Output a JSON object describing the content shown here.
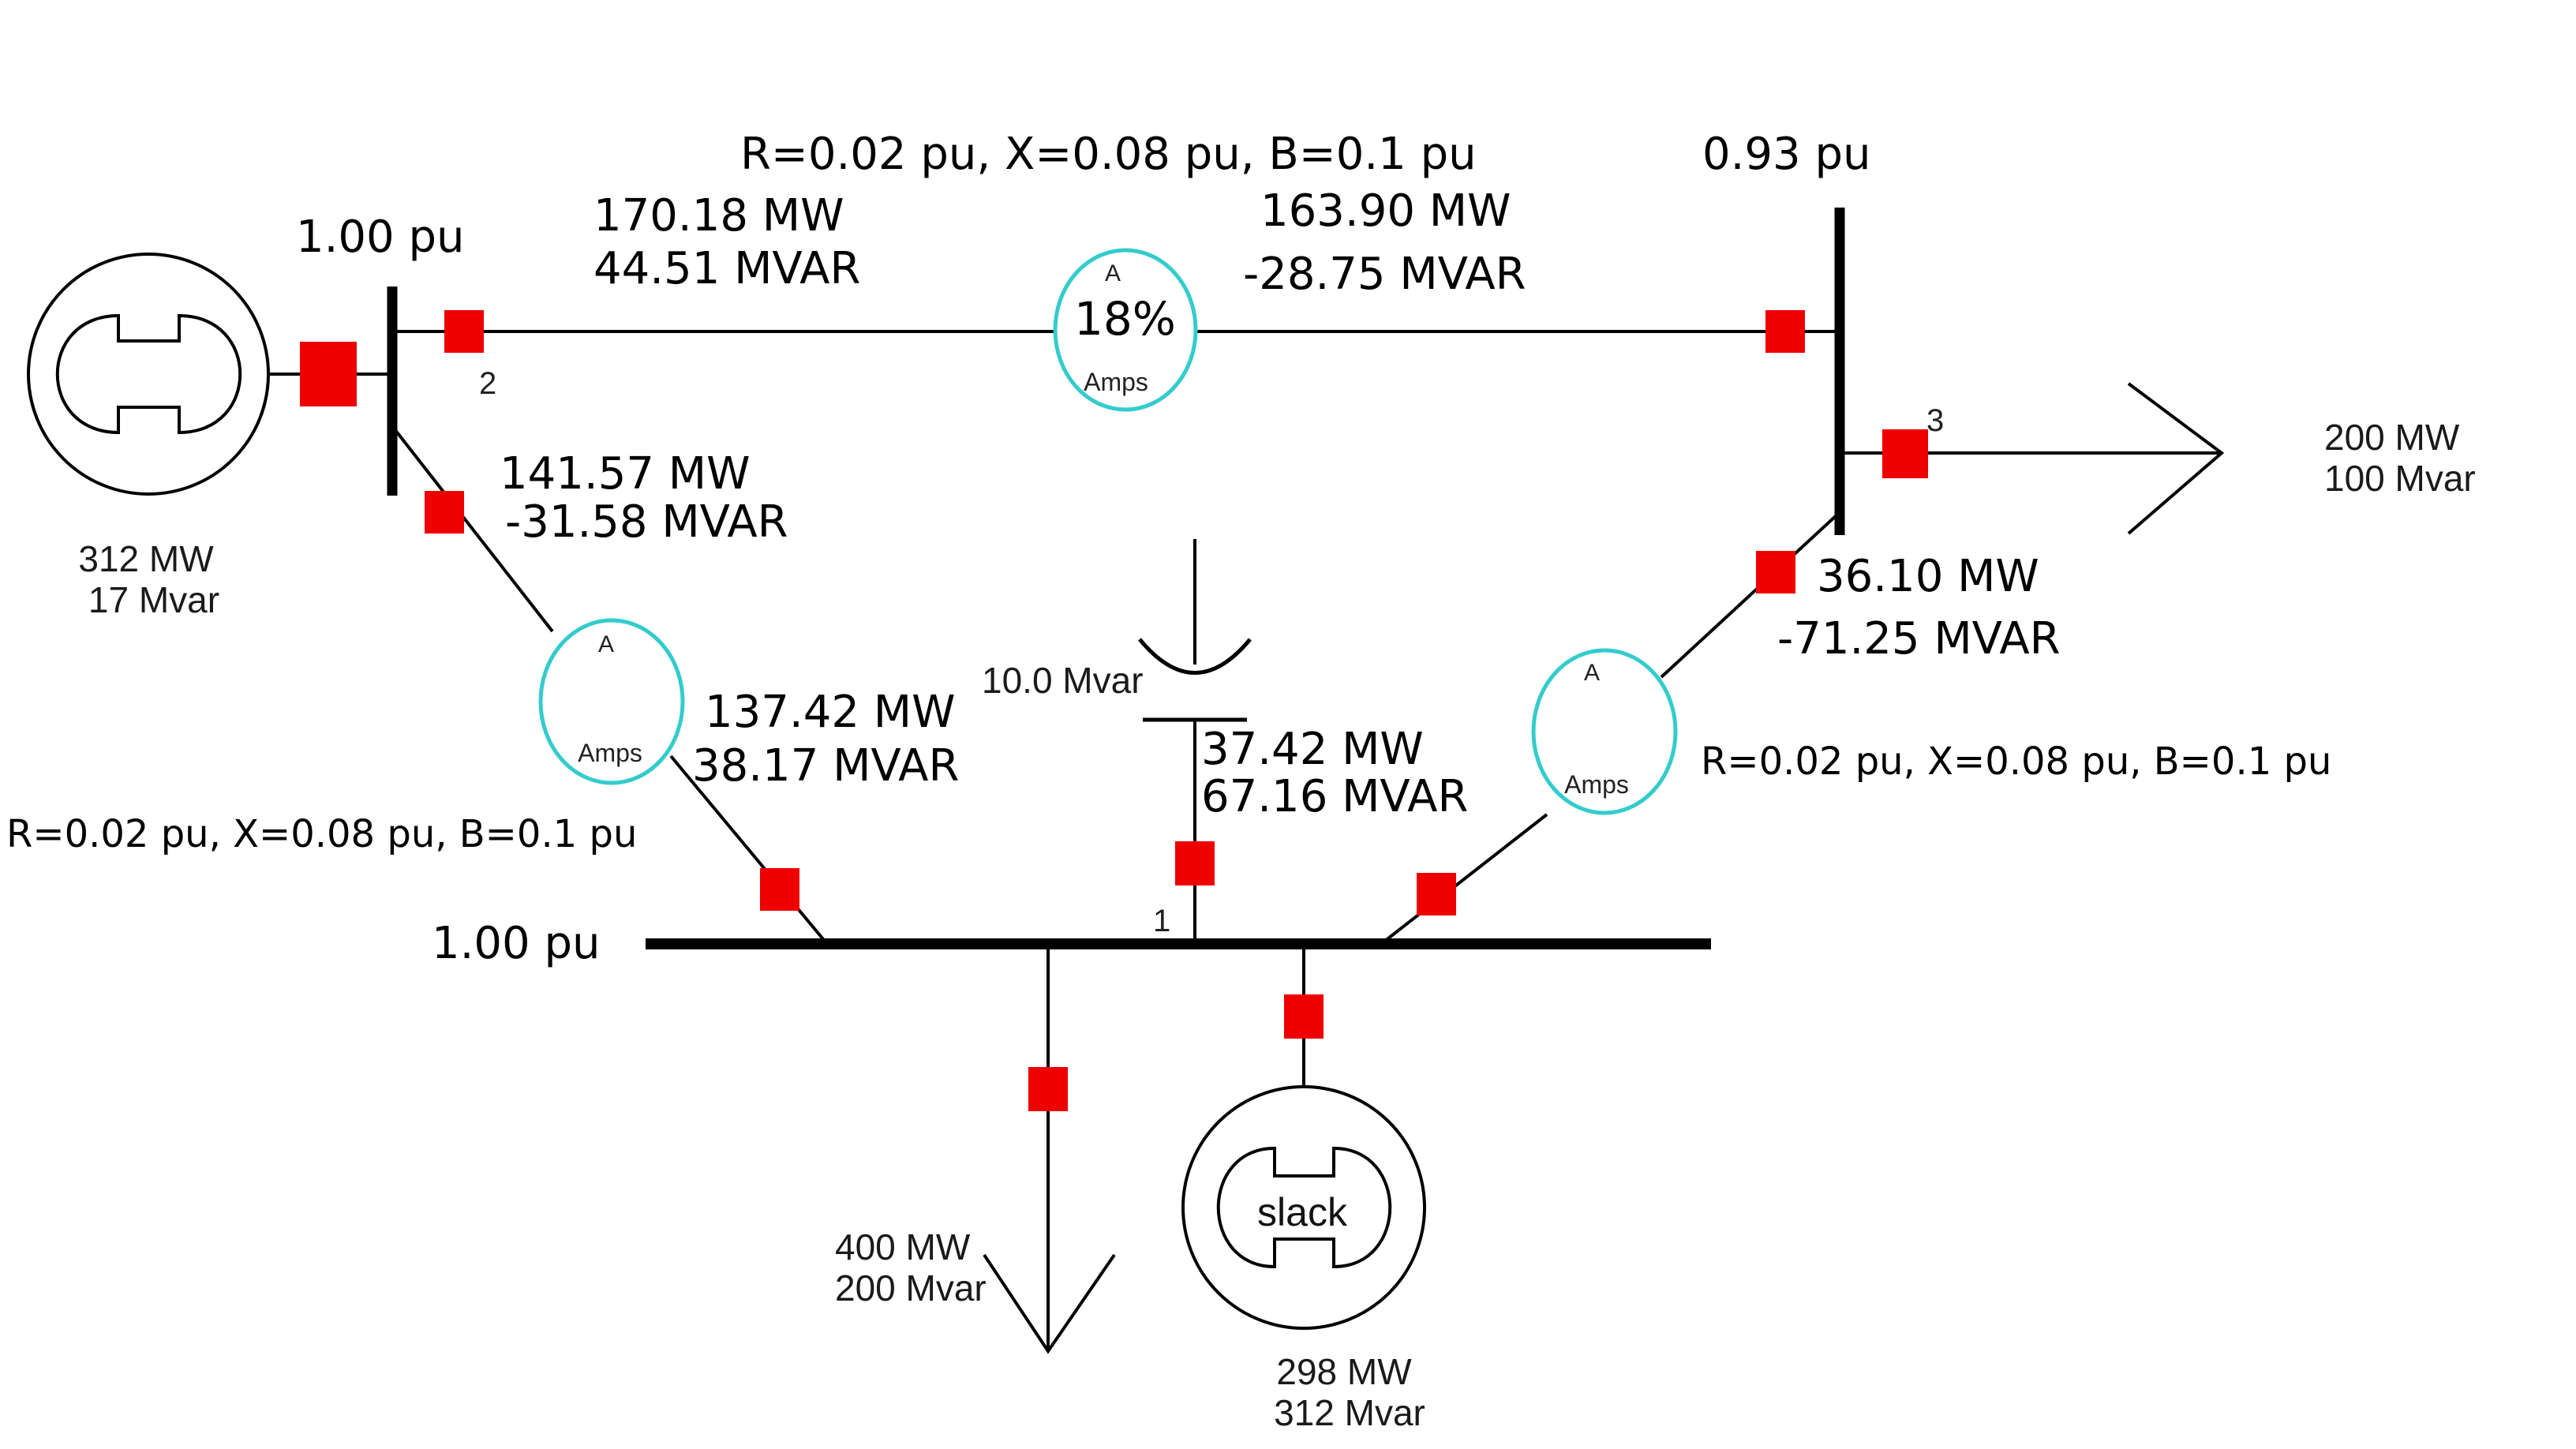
{
  "buses": {
    "bus1": {
      "number": "1",
      "voltage": "1.00 pu"
    },
    "bus2": {
      "number": "2",
      "voltage": "1.00 pu"
    },
    "bus3": {
      "number": "3",
      "voltage": "0.93 pu"
    }
  },
  "lines": {
    "line_2_3": {
      "impedance": "R=0.02 pu, X=0.08 pu, B=0.1 pu",
      "from_flow": {
        "mw": "170.18 MW",
        "mvar": "44.51 MVAR"
      },
      "to_flow": {
        "mw": "163.90 MW",
        "mvar": "-28.75 MVAR"
      },
      "meter": {
        "top": "A",
        "value": "18%",
        "unit": "Amps"
      }
    },
    "line_2_1": {
      "impedance": "R=0.02 pu, X=0.08 pu, B=0.1 pu",
      "from_flow": {
        "mw": "141.57 MW",
        "mvar": "-31.58 MVAR"
      },
      "to_flow": {
        "mw": "137.42 MW",
        "mvar": "38.17 MVAR"
      },
      "meter": {
        "top": "A",
        "unit": "Amps"
      }
    },
    "line_3_1": {
      "impedance": "R=0.02 pu, X=0.08 pu, B=0.1 pu",
      "from_flow": {
        "mw": "36.10 MW",
        "mvar": "-71.25 MVAR"
      },
      "to_flow": {
        "mw": "37.42 MW",
        "mvar": "67.16 MVAR"
      },
      "meter": {
        "top": "A",
        "unit": "Amps"
      }
    }
  },
  "generators": {
    "gen2": {
      "mw": "312 MW",
      "mvar": "17 Mvar"
    },
    "slack": {
      "label": "slack",
      "mw": "298 MW",
      "mvar": "312 Mvar"
    }
  },
  "loads": {
    "load3": {
      "mw": "200 MW",
      "mvar": "100 Mvar"
    },
    "load1": {
      "mw": "400 MW",
      "mvar": "200 Mvar"
    }
  },
  "capacitor": {
    "mvar": "10.0 Mvar"
  },
  "colors": {
    "breaker": "#ee0000",
    "meter": "#33cccc",
    "line": "#000000"
  }
}
